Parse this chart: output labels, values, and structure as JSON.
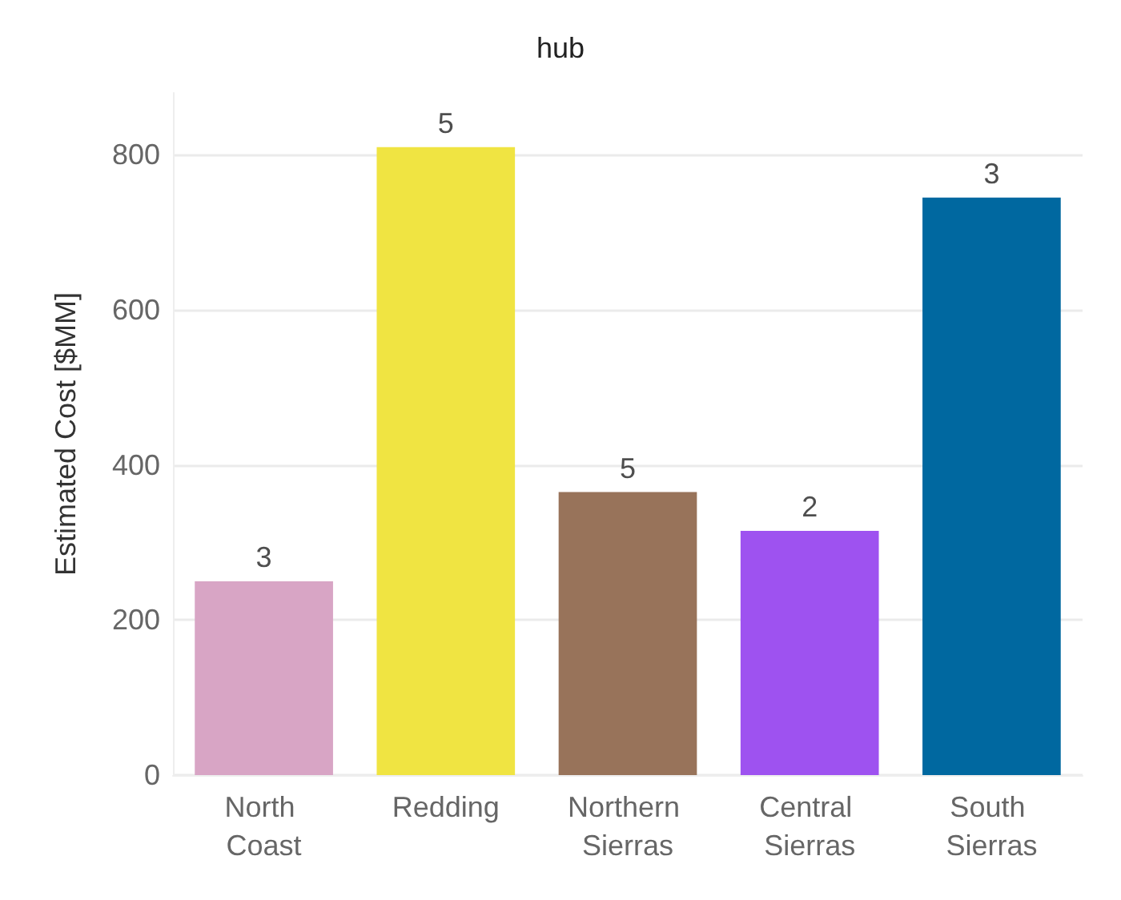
{
  "chart_data": {
    "type": "bar",
    "title": "hub",
    "ylabel": "Estimated Cost [$MM]",
    "categories": [
      "North Coast",
      "Redding",
      "Northern Sierras",
      "Central Sierras",
      "South Sierras"
    ],
    "values": [
      250,
      810,
      365,
      315,
      745
    ],
    "colors": [
      "#d8a5c5",
      "#f0e442",
      "#98735a",
      "#9e52f0",
      "#0068a0"
    ],
    "annotations": [
      {
        "text": "3",
        "x": "North Coast",
        "y": 250
      },
      {
        "text": "5",
        "x": "Redding",
        "y": 810
      },
      {
        "text": "5",
        "x": "Northern Sierras",
        "y": 365
      },
      {
        "text": "2",
        "x": "Central Sierras",
        "y": 315
      },
      {
        "text": "3",
        "x": "South Sierras",
        "y": 745
      }
    ],
    "ylim": [
      0,
      880
    ],
    "yticks": [
      0,
      200,
      400,
      600,
      800
    ],
    "grid": "y"
  }
}
